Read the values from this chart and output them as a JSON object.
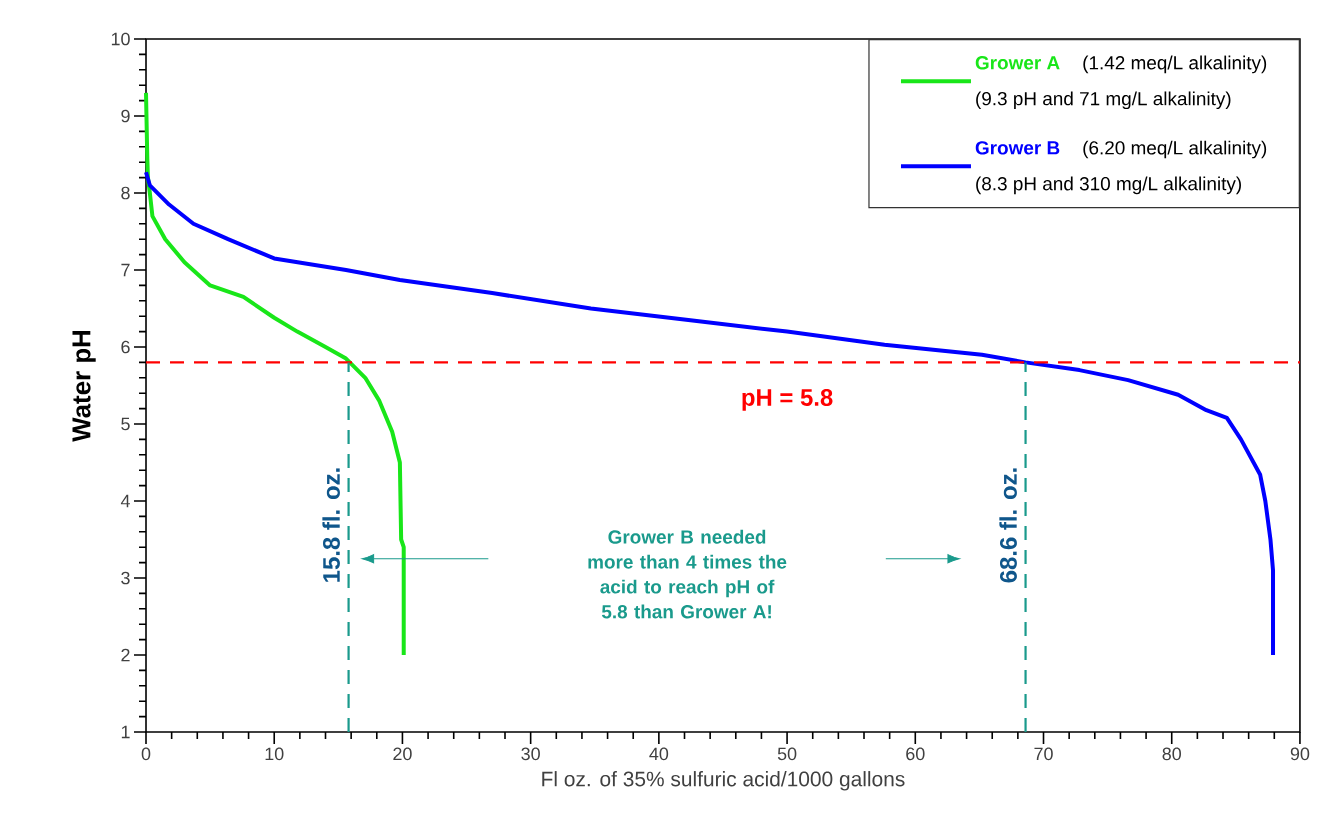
{
  "chart_data": {
    "type": "line",
    "xlabel": "Fl oz. of 35% sulfuric acid/1000 gallons",
    "ylabel": "Water pH",
    "xlim": [
      0,
      90
    ],
    "ylim": [
      1,
      10
    ],
    "xticks": [
      0,
      10,
      20,
      30,
      40,
      50,
      60,
      70,
      80,
      90
    ],
    "yticks": [
      1,
      2,
      3,
      4,
      5,
      6,
      7,
      8,
      9,
      10
    ],
    "legend": "top right",
    "series": [
      {
        "name": "Grower A",
        "color": "#19e619",
        "x": [
          0,
          0.1,
          0.15,
          0.3,
          0.5,
          1.5,
          3.0,
          5.0,
          7.6,
          10.0,
          11.8,
          14.0,
          15.6,
          17.1,
          18.2,
          19.2,
          19.8,
          19.9,
          20.1,
          20.1
        ],
        "values": [
          9.3,
          8.45,
          8.2,
          8.0,
          7.7,
          7.4,
          7.1,
          6.8,
          6.65,
          6.38,
          6.2,
          6.0,
          5.85,
          5.6,
          5.3,
          4.9,
          4.5,
          3.5,
          3.4,
          2.0
        ]
      },
      {
        "name": "Grower B",
        "color": "#0000ff",
        "x": [
          0,
          0.3,
          1.8,
          3.7,
          6.4,
          10.0,
          15.6,
          19.8,
          27.0,
          34.7,
          42.3,
          50.0,
          57.6,
          65.2,
          68.6,
          72.8,
          76.6,
          80.5,
          82.7,
          84.3,
          85.4,
          86.9,
          87.3,
          87.7,
          87.9,
          87.9
        ],
        "values": [
          8.27,
          8.1,
          7.85,
          7.6,
          7.4,
          7.15,
          7.0,
          6.87,
          6.7,
          6.5,
          6.35,
          6.2,
          6.03,
          5.9,
          5.8,
          5.7,
          5.57,
          5.38,
          5.18,
          5.08,
          4.8,
          4.34,
          4.0,
          3.5,
          3.1,
          2.0
        ]
      }
    ],
    "ref_lines": [
      {
        "axis": "y",
        "value": 5.8,
        "label": "pH = 5.8",
        "color": "#ff0000",
        "line_style": "dashed"
      },
      {
        "axis": "x",
        "value": 15.8,
        "label": "15.8 fl. oz.",
        "color": "#1a9a8c",
        "line_style": "dashed"
      },
      {
        "axis": "x",
        "value": 68.6,
        "label": "68.6 fl. oz.",
        "color": "#1a9a8c",
        "line_style": "dashed"
      }
    ],
    "annotations": [
      "(1.42 meq/L alkalinity)",
      "(9.3 pH and 71 mg/L alkalinity)",
      "(6.20 meq/L alkalinity)",
      "(8.3 pH and 310 mg/L alkalinity)",
      "Grower B needed more than 4 times the acid to reach pH of 5.8 than Grower A!"
    ]
  }
}
